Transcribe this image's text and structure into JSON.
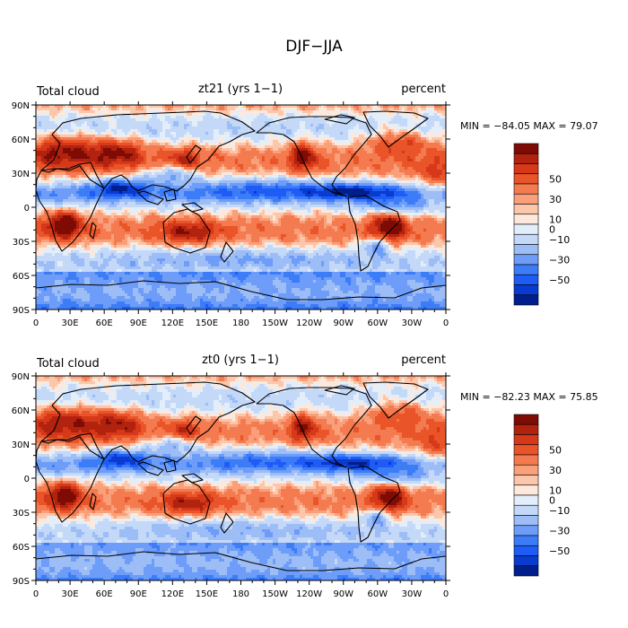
{
  "figure_title": "DJF−JJA",
  "colors": {
    "land_outline": "#000000",
    "scale": [
      "#001f8c",
      "#0a3bd0",
      "#1e5cf5",
      "#3c7cf7",
      "#6d9df8",
      "#9dbdf7",
      "#c4d8f8",
      "#e3eefb",
      "#fde8dc",
      "#fcc6ab",
      "#f9a07a",
      "#f47a4f",
      "#ea5429",
      "#d6381a",
      "#b2230f",
      "#7e0c05"
    ]
  },
  "chart_data": [
    {
      "type": "heatmap",
      "title": "zt21 (yrs 1−1)",
      "left_label": "Total cloud",
      "right_label": "percent",
      "stats_text": "MIN = −84.05 MAX =  79.07",
      "min": -84.05,
      "max": 79.07,
      "x_ticks": [
        "0",
        "30E",
        "60E",
        "90E",
        "120E",
        "150E",
        "180",
        "150W",
        "120W",
        "90W",
        "60W",
        "30W",
        "0"
      ],
      "y_ticks": [
        "90N",
        "60N",
        "30N",
        "0",
        "30S",
        "60S",
        "90S"
      ],
      "colorbar_labels": [
        "50",
        "30",
        "10",
        "0",
        "−10",
        "−30",
        "−50"
      ],
      "xlim": [
        0,
        360
      ],
      "ylim": [
        -90,
        90
      ],
      "bias": 1.0
    },
    {
      "type": "heatmap",
      "title": "zt0 (yrs 1−1)",
      "left_label": "Total cloud",
      "right_label": "percent",
      "stats_text": "MIN = −82.23 MAX =  75.85",
      "min": -82.23,
      "max": 75.85,
      "x_ticks": [
        "0",
        "30E",
        "60E",
        "90E",
        "120E",
        "150E",
        "180",
        "150W",
        "120W",
        "90W",
        "60W",
        "30W",
        "0"
      ],
      "y_ticks": [
        "90N",
        "60N",
        "30N",
        "0",
        "30S",
        "60S",
        "90S"
      ],
      "colorbar_labels": [
        "50",
        "30",
        "10",
        "0",
        "−10",
        "−30",
        "−50"
      ],
      "xlim": [
        0,
        360
      ],
      "ylim": [
        -90,
        90
      ],
      "bias": 0.92
    }
  ]
}
